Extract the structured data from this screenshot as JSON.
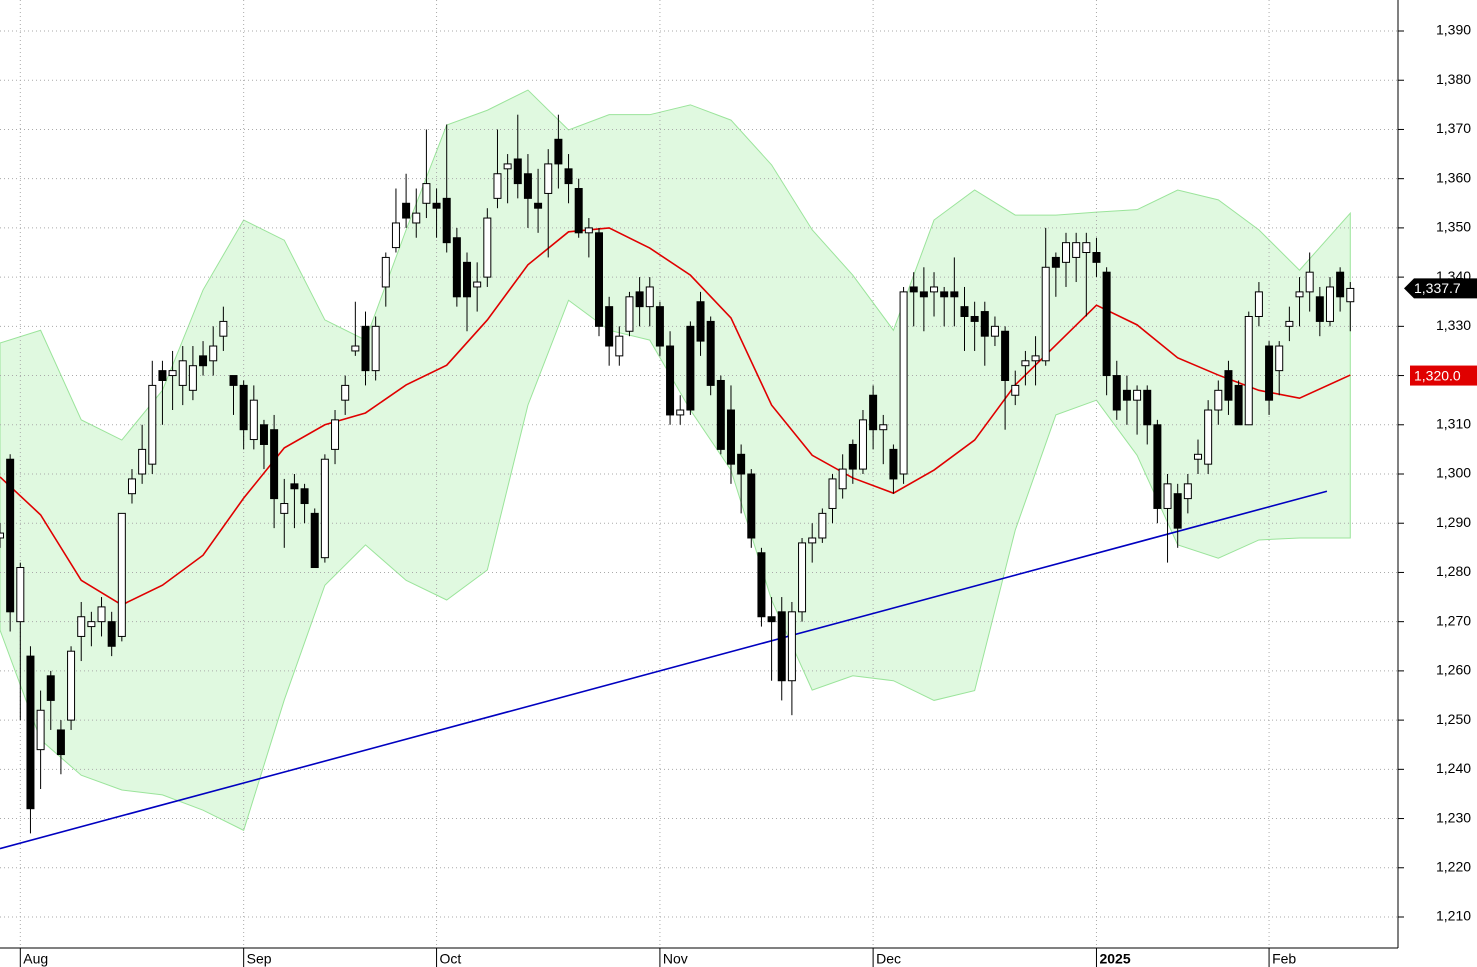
{
  "chart_data": {
    "type": "candlestick",
    "xlim": [
      0,
      137.7
    ],
    "ylim": [
      1203.7,
      1396.3
    ],
    "xticks": [
      {
        "value": 2,
        "label": "Aug"
      },
      {
        "value": 24,
        "label": "Sep"
      },
      {
        "value": 43,
        "label": "Oct"
      },
      {
        "value": 65,
        "label": "Nov"
      },
      {
        "value": 86,
        "label": "Dec"
      },
      {
        "value": 108,
        "label": "2025"
      },
      {
        "value": 125,
        "label": "Feb"
      }
    ],
    "yticks": [
      {
        "value": 1210,
        "label": "1,210"
      },
      {
        "value": 1220,
        "label": "1,220"
      },
      {
        "value": 1230,
        "label": "1,230"
      },
      {
        "value": 1240,
        "label": "1,240"
      },
      {
        "value": 1250,
        "label": "1,250"
      },
      {
        "value": 1260,
        "label": "1,260"
      },
      {
        "value": 1270,
        "label": "1,270"
      },
      {
        "value": 1280,
        "label": "1,280"
      },
      {
        "value": 1290,
        "label": "1,290"
      },
      {
        "value": 1300,
        "label": "1,300"
      },
      {
        "value": 1310,
        "label": "1,310"
      },
      {
        "value": 1320,
        "label": "1,320"
      },
      {
        "value": 1330,
        "label": "1,330"
      },
      {
        "value": 1340,
        "label": "1,340"
      },
      {
        "value": 1350,
        "label": "1,350"
      },
      {
        "value": 1360,
        "label": "1,360"
      },
      {
        "value": 1370,
        "label": "1,370"
      },
      {
        "value": 1380,
        "label": "1,380"
      },
      {
        "value": 1390,
        "label": "1,390"
      }
    ],
    "grid": true,
    "open": [
      1287,
      1303,
      1270,
      1263,
      1244,
      1259,
      1248,
      1250,
      1267,
      1269,
      1270,
      1270,
      1267,
      1296,
      1300,
      1302,
      1321,
      1320,
      1318,
      1317,
      1324,
      1323,
      1328,
      1320,
      1318,
      1307,
      1310,
      1309,
      1292,
      1298,
      1297,
      1292,
      1283,
      1305,
      1315,
      1325,
      1330,
      1321,
      1338,
      1346,
      1355,
      1351,
      1355,
      1355,
      1356,
      1348,
      1343,
      1338,
      1340,
      1356,
      1362,
      1364,
      1361,
      1355,
      1357,
      1368,
      1362,
      1358,
      1349,
      1349,
      1334,
      1324,
      1329,
      1337,
      1334,
      1334,
      1326,
      1312,
      1330,
      1335,
      1331,
      1319,
      1313,
      1304,
      1300,
      1284,
      1271,
      1272,
      1258,
      1272,
      1286,
      1287,
      1293,
      1297,
      1306,
      1301,
      1316,
      1309,
      1305,
      1300,
      1338,
      1337,
      1337,
      1337,
      1337,
      1334,
      1332,
      1333,
      1328,
      1329,
      1316,
      1322,
      1323,
      1323,
      1344,
      1343,
      1344,
      1345,
      1345,
      1341,
      1320,
      1317,
      1315,
      1317,
      1310,
      1293,
      1296,
      1295,
      1303,
      1302,
      1313,
      1321,
      1318,
      1310,
      1332,
      1326,
      1321,
      1330,
      1336,
      1337,
      1336,
      1331,
      1341,
      1335
    ],
    "high": [
      1290,
      1304,
      1282,
      1265,
      1256,
      1260,
      1250,
      1265,
      1274,
      1272,
      1275,
      1272,
      1292,
      1301,
      1310,
      1323,
      1323,
      1325,
      1326,
      1326,
      1327,
      1330,
      1334,
      1320,
      1319,
      1318,
      1311,
      1312,
      1299,
      1300,
      1298,
      1293,
      1304,
      1313,
      1320,
      1335,
      1333,
      1332,
      1345,
      1358,
      1361,
      1358,
      1370,
      1358,
      1371,
      1350,
      1345,
      1343,
      1354,
      1370,
      1365,
      1373,
      1365,
      1362,
      1366,
      1373,
      1365,
      1360,
      1352,
      1350,
      1336,
      1330,
      1337,
      1340,
      1340,
      1335,
      1329,
      1316,
      1331,
      1337,
      1332,
      1320,
      1318,
      1306,
      1301,
      1285,
      1275,
      1275,
      1274,
      1287,
      1290,
      1293,
      1300,
      1304,
      1307,
      1313,
      1318,
      1312,
      1306,
      1338,
      1341,
      1342,
      1341,
      1338,
      1344,
      1338,
      1335,
      1335,
      1332,
      1330,
      1321,
      1325,
      1328,
      1350,
      1345,
      1349,
      1349,
      1349,
      1348,
      1342,
      1323,
      1320,
      1318,
      1318,
      1311,
      1300,
      1298,
      1300,
      1307,
      1315,
      1319,
      1323,
      1319,
      1333,
      1339,
      1327,
      1327,
      1334,
      1340,
      1345,
      1338,
      1340,
      1342,
      1339
    ],
    "low": [
      1285,
      1268,
      1250,
      1227,
      1236,
      1248,
      1239,
      1248,
      1262,
      1265,
      1267,
      1263,
      1266,
      1294,
      1298,
      1300,
      1310,
      1313,
      1314,
      1315,
      1320,
      1320,
      1325,
      1312,
      1305,
      1305,
      1301,
      1289,
      1285,
      1289,
      1290,
      1281,
      1282,
      1302,
      1312,
      1324,
      1318,
      1319,
      1334,
      1345,
      1350,
      1348,
      1352,
      1348,
      1345,
      1334,
      1329,
      1333,
      1338,
      1354,
      1355,
      1356,
      1350,
      1349,
      1344,
      1358,
      1355,
      1348,
      1344,
      1328,
      1322,
      1322,
      1328,
      1330,
      1330,
      1324,
      1310,
      1310,
      1312,
      1324,
      1316,
      1304,
      1298,
      1292,
      1285,
      1269,
      1258,
      1254,
      1251,
      1270,
      1282,
      1286,
      1290,
      1295,
      1298,
      1300,
      1305,
      1302,
      1296,
      1298,
      1330,
      1329,
      1332,
      1330,
      1330,
      1325,
      1325,
      1322,
      1326,
      1309,
      1314,
      1318,
      1318,
      1322,
      1336,
      1338,
      1339,
      1332,
      1340,
      1316,
      1311,
      1310,
      1308,
      1306,
      1290,
      1282,
      1285,
      1292,
      1300,
      1300,
      1310,
      1312,
      1310,
      1310,
      1330,
      1312,
      1316,
      1327,
      1330,
      1333,
      1328,
      1330,
      1333,
      1329
    ],
    "close": [
      1288,
      1272,
      1281,
      1232,
      1252,
      1254,
      1243,
      1264,
      1271,
      1270,
      1273,
      1265,
      1292,
      1299,
      1305,
      1318,
      1319,
      1321,
      1323,
      1322,
      1322,
      1326,
      1331,
      1318,
      1309,
      1315,
      1306,
      1295,
      1294,
      1297,
      1294,
      1281,
      1303,
      1311,
      1318,
      1326,
      1321,
      1330,
      1344,
      1351,
      1352,
      1353,
      1359,
      1354,
      1347,
      1336,
      1336,
      1339,
      1352,
      1361,
      1363,
      1359,
      1356,
      1354,
      1363,
      1363,
      1359,
      1349,
      1350,
      1330,
      1326,
      1328,
      1336,
      1334,
      1338,
      1326,
      1312,
      1313,
      1313,
      1327,
      1318,
      1305,
      1302,
      1300,
      1287,
      1271,
      1270,
      1258,
      1272,
      1286,
      1287,
      1292,
      1299,
      1301,
      1301,
      1311,
      1309,
      1310,
      1299,
      1337,
      1337,
      1336,
      1338,
      1336,
      1336,
      1332,
      1331,
      1328,
      1330,
      1319,
      1318,
      1323,
      1324,
      1342,
      1342,
      1347,
      1347,
      1347,
      1343,
      1320,
      1313,
      1315,
      1317,
      1310,
      1293,
      1298,
      1289,
      1298,
      1304,
      1313,
      1317,
      1315,
      1310,
      1332,
      1337,
      1315,
      1326,
      1331,
      1337,
      1341,
      1331,
      1338,
      1336,
      1337.7
    ],
    "bands": {
      "color": "#ccf5cc",
      "x": [
        0,
        4,
        8,
        12,
        16,
        20,
        24,
        28,
        32,
        36,
        40,
        44,
        48,
        52,
        56,
        60,
        64,
        68,
        72,
        76,
        80,
        84,
        88,
        92,
        96,
        100,
        104,
        108,
        112,
        116,
        120,
        124,
        128,
        133
      ],
      "upper": [
        1326.6,
        1329.2,
        1311,
        1306.9,
        1317,
        1337.4,
        1351.6,
        1347.5,
        1331.3,
        1327.2,
        1349.6,
        1370.9,
        1373.9,
        1378,
        1369.9,
        1373,
        1373,
        1375,
        1371.9,
        1362.8,
        1349.6,
        1340.4,
        1329.2,
        1351.6,
        1357.7,
        1352.6,
        1352.6,
        1353.2,
        1353.7,
        1357.7,
        1355.7,
        1349.6,
        1341.4,
        1353
      ],
      "lower": [
        1268.3,
        1246,
        1238.8,
        1235.8,
        1234.8,
        1231.7,
        1227.6,
        1254.1,
        1277.4,
        1285.6,
        1278.4,
        1274.4,
        1280.5,
        1314,
        1335.3,
        1329.2,
        1327.2,
        1313,
        1300.8,
        1274.4,
        1256.1,
        1259,
        1258,
        1254,
        1256,
        1288.6,
        1312,
        1315,
        1303.8,
        1285.6,
        1282.9,
        1286.6,
        1287,
        1287
      ],
      "middle": [
        1299.4,
        1291.7,
        1278.4,
        1273.4,
        1277.4,
        1283.5,
        1295.1,
        1305.3,
        1310,
        1312.4,
        1318.1,
        1322.1,
        1331.3,
        1342.5,
        1349.2,
        1350,
        1345.9,
        1340.4,
        1331.7,
        1314,
        1303.8,
        1299.2,
        1296.1,
        1300.8,
        1306.9,
        1318.1,
        1326.2,
        1334.3,
        1330.3,
        1323.6,
        1320.1,
        1317,
        1315.4,
        1320.1
      ],
      "middle_color": "#e00000"
    },
    "trendline": {
      "color": "#0000c0",
      "x": [
        0,
        130.7
      ],
      "values": [
        1223.9,
        1296.5
      ]
    },
    "price_labels": [
      {
        "value": 1337.7,
        "label": "1,337.7",
        "color": "#000000"
      },
      {
        "value": 1320.0,
        "label": "1,320.0",
        "color": "#e00000"
      }
    ]
  }
}
